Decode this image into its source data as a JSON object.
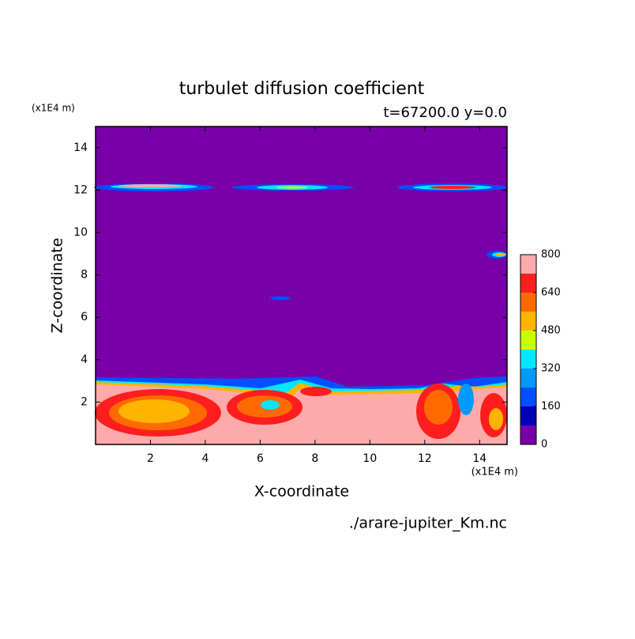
{
  "chart_data": {
    "type": "contour",
    "title": "turbulet diffusion coefficient",
    "subtitle": "t=67200.0 y=0.0",
    "x_label": "X-coordinate",
    "y_label": "Z-coordinate",
    "x_unit": "(x1E4 m)",
    "y_unit": "(x1E4 m)",
    "source": "./arare-jupiter_Km.nc",
    "xlim": [
      0,
      15
    ],
    "xticks": [
      2,
      4,
      6,
      8,
      10,
      12,
      14
    ],
    "ylim": [
      0,
      15
    ],
    "yticks": [
      2,
      4,
      6,
      8,
      10,
      12,
      14
    ],
    "levels": [
      0,
      80,
      160,
      240,
      320,
      400,
      480,
      560,
      640,
      720,
      800
    ],
    "colors": [
      "#7800a8",
      "#0000b4",
      "#0050ff",
      "#0099ff",
      "#00e8ff",
      "#c8ff00",
      "#ffb400",
      "#ff6a00",
      "#ff1e1e",
      "#ffaaaa"
    ],
    "colorbar_ticks": [
      0,
      160,
      320,
      480,
      640,
      800
    ]
  }
}
